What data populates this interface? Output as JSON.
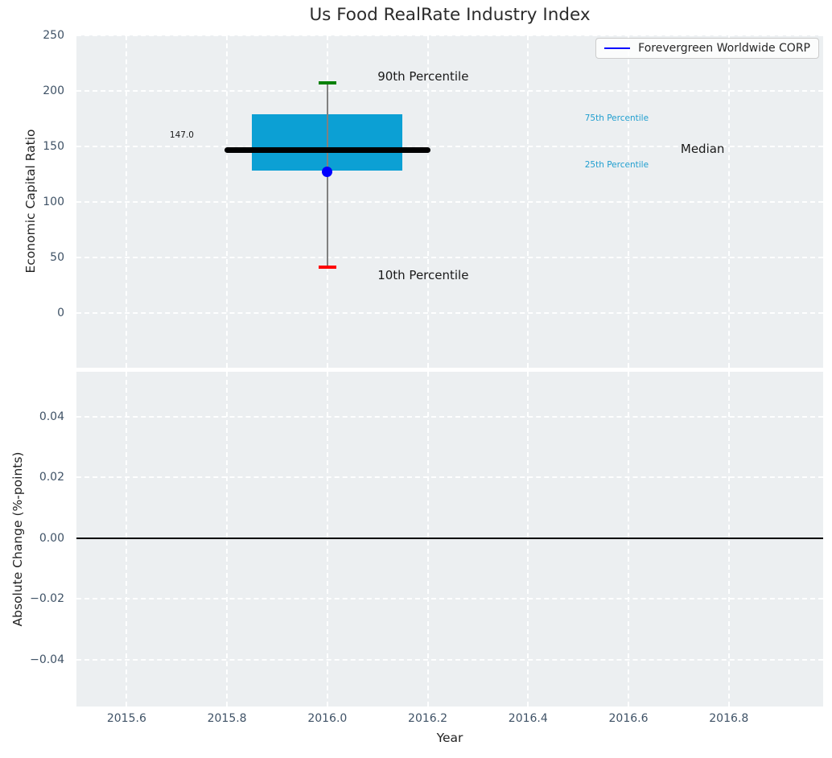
{
  "chart_data": [
    {
      "type": "boxplot",
      "title": "Us Food RealRate Industry Index",
      "ylabel": "Economic Capital Ratio",
      "legend": [
        "Forevergreen Worldwide CORP"
      ],
      "legend_position": "upper right",
      "grid": true,
      "xlim": [
        2015.5,
        2016.988
      ],
      "ylim": [
        -49.3,
        250
      ],
      "yticks": [
        {
          "v": 0,
          "label": "0"
        },
        {
          "v": 50,
          "label": "50"
        },
        {
          "v": 100,
          "label": "100"
        },
        {
          "v": 150,
          "label": "150"
        },
        {
          "v": 200,
          "label": "200"
        },
        {
          "v": 250,
          "label": "250"
        }
      ],
      "box": {
        "x": 2016.0,
        "p90": 207,
        "p75": 179,
        "median": 147,
        "p25": 128,
        "p10": 41,
        "company_value": 127,
        "median_value_label": "147.0",
        "box_x": [
          2015.85,
          2016.15
        ],
        "median_x": [
          2015.8,
          2016.2
        ],
        "cap_half_width": 0.018
      },
      "annotations": [
        {
          "name": "90th-percentile-label",
          "text": "90th Percentile",
          "x": 2016.1,
          "y": 213,
          "size": 15,
          "color": "#1a1a1a",
          "align": "left"
        },
        {
          "name": "10th-percentile-label",
          "text": "10th Percentile",
          "x": 2016.1,
          "y": 34,
          "size": 15,
          "color": "#1a1a1a",
          "align": "left"
        },
        {
          "name": "median-value-label",
          "text": "147.0",
          "x": 2015.71,
          "y": 160,
          "size": 10.5,
          "color": "#1a1a1a",
          "align": "center"
        },
        {
          "name": "75th-percentile-label",
          "text": "75th Percentile",
          "x": 2016.513,
          "y": 175,
          "size": 10.5,
          "color": "#1f9ecf",
          "align": "left"
        },
        {
          "name": "25th-percentile-label",
          "text": "25th Percentile",
          "x": 2016.513,
          "y": 133,
          "size": 10.5,
          "color": "#1f9ecf",
          "align": "left"
        },
        {
          "name": "median-label",
          "text": "Median",
          "x": 2016.704,
          "y": 147.5,
          "size": 15,
          "color": "#1a1a1a",
          "align": "left"
        }
      ]
    },
    {
      "type": "line",
      "ylabel": "Absolute Change (%-points)",
      "xlabel": "Year",
      "xlim": [
        2015.5,
        2016.988
      ],
      "ylim": [
        -0.0554,
        0.0548
      ],
      "yticks": [
        {
          "v": 0.04,
          "label": "0.04"
        },
        {
          "v": 0.02,
          "label": "0.02"
        },
        {
          "v": 0.0,
          "label": "0.00"
        },
        {
          "v": -0.02,
          "label": "−0.02"
        },
        {
          "v": -0.04,
          "label": "−0.04"
        }
      ],
      "xticks": [
        {
          "v": 2015.6,
          "label": "2015.6"
        },
        {
          "v": 2015.8,
          "label": "2015.8"
        },
        {
          "v": 2016.0,
          "label": "2016.0"
        },
        {
          "v": 2016.2,
          "label": "2016.2"
        },
        {
          "v": 2016.4,
          "label": "2016.4"
        },
        {
          "v": 2016.6,
          "label": "2016.6"
        },
        {
          "v": 2016.8,
          "label": "2016.8"
        }
      ],
      "zero_line": 0.0,
      "series": []
    }
  ],
  "colors": {
    "plot_bg": "#eceff1",
    "grid": "#ffffff",
    "box_fill": "#0ca0d4",
    "median_line": "#000000",
    "whisker": "#808080",
    "cap_top": "#008000",
    "cap_bottom": "#ff0000",
    "company_marker": "#0000ff",
    "legend_line": "#0000ff",
    "tick_text": "#3f5266",
    "zero_line": "#000000"
  }
}
